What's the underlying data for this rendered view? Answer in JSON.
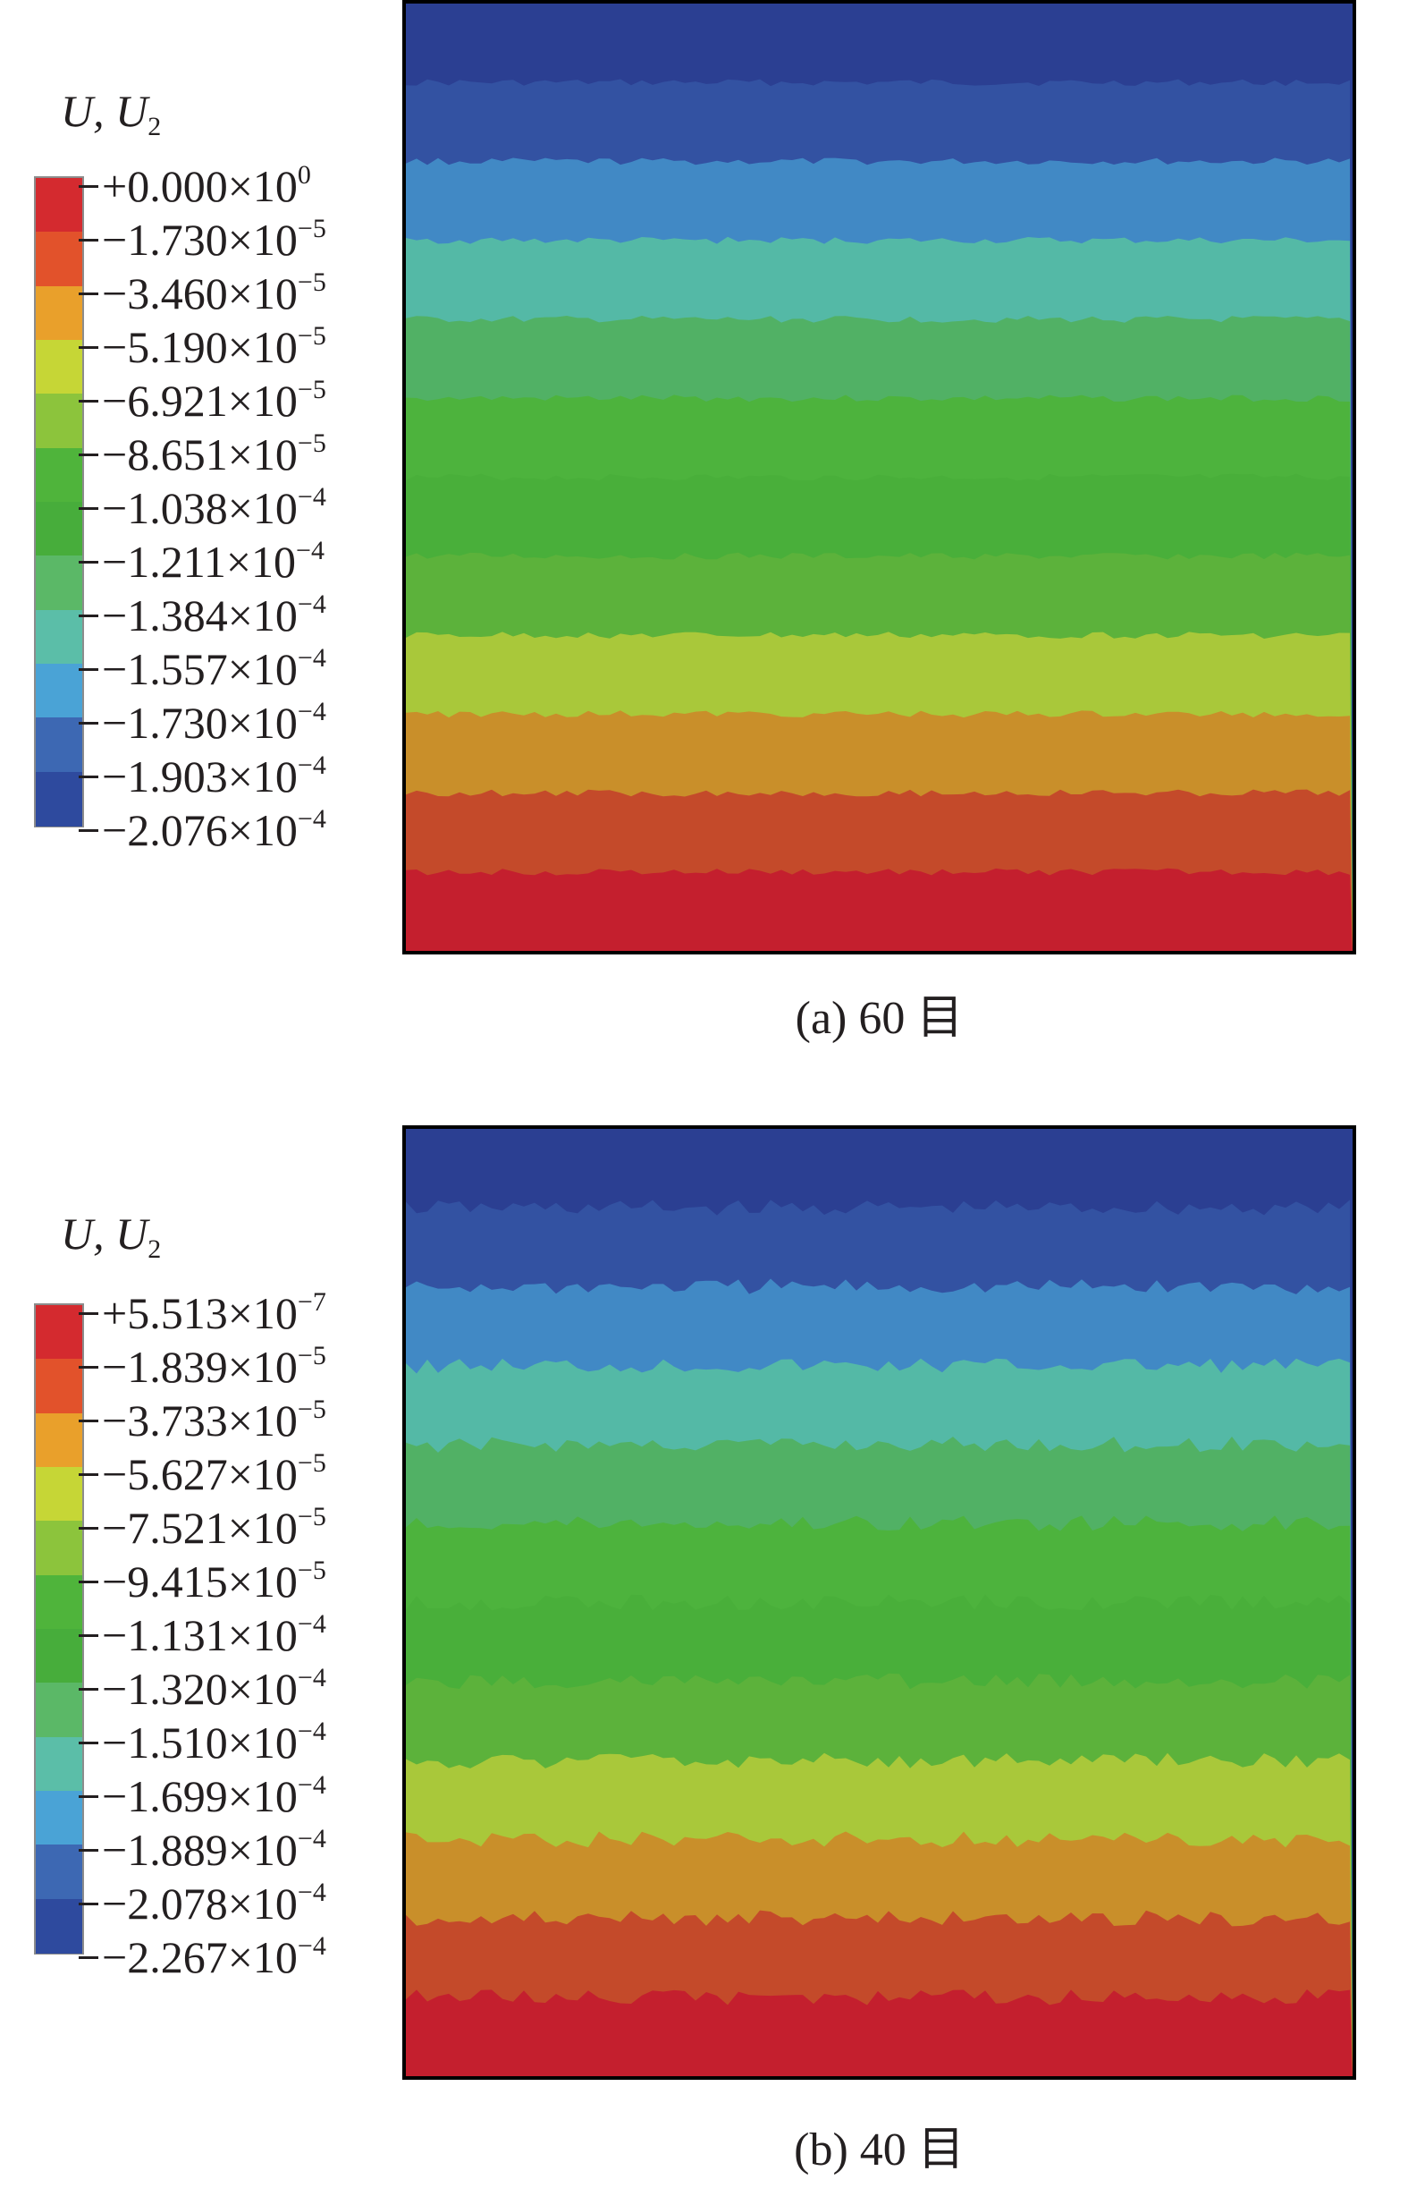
{
  "panels": [
    {
      "id": "a",
      "legend_title": {
        "main": "U, U",
        "sub": "2"
      },
      "legend_labels": [
        {
          "mantissa": "+0.000×10",
          "exp": "0"
        },
        {
          "mantissa": "−1.730×10",
          "exp": "−5"
        },
        {
          "mantissa": "−3.460×10",
          "exp": "−5"
        },
        {
          "mantissa": "−5.190×10",
          "exp": "−5"
        },
        {
          "mantissa": "−6.921×10",
          "exp": "−5"
        },
        {
          "mantissa": "−8.651×10",
          "exp": "−5"
        },
        {
          "mantissa": "−1.038×10",
          "exp": "−4"
        },
        {
          "mantissa": "−1.211×10",
          "exp": "−4"
        },
        {
          "mantissa": "−1.384×10",
          "exp": "−4"
        },
        {
          "mantissa": "−1.557×10",
          "exp": "−4"
        },
        {
          "mantissa": "−1.730×10",
          "exp": "−4"
        },
        {
          "mantissa": "−1.903×10",
          "exp": "−4"
        },
        {
          "mantissa": "−2.076×10",
          "exp": "−4"
        }
      ],
      "caption": "(a) 60 目"
    },
    {
      "id": "b",
      "legend_title": {
        "main": "U, U",
        "sub": "2"
      },
      "legend_labels": [
        {
          "mantissa": "+5.513×10",
          "exp": "−7"
        },
        {
          "mantissa": "−1.839×10",
          "exp": "−5"
        },
        {
          "mantissa": "−3.733×10",
          "exp": "−5"
        },
        {
          "mantissa": "−5.627×10",
          "exp": "−5"
        },
        {
          "mantissa": "−7.521×10",
          "exp": "−5"
        },
        {
          "mantissa": "−9.415×10",
          "exp": "−5"
        },
        {
          "mantissa": "−1.131×10",
          "exp": "−4"
        },
        {
          "mantissa": "−1.320×10",
          "exp": "−4"
        },
        {
          "mantissa": "−1.510×10",
          "exp": "−4"
        },
        {
          "mantissa": "−1.699×10",
          "exp": "−4"
        },
        {
          "mantissa": "−1.889×10",
          "exp": "−4"
        },
        {
          "mantissa": "−2.078×10",
          "exp": "−4"
        },
        {
          "mantissa": "−2.267×10",
          "exp": "−4"
        }
      ],
      "caption": "(b) 40 目"
    }
  ],
  "colormap": [
    "#d42a2f",
    "#e2522b",
    "#e9a02b",
    "#c6d636",
    "#8cc43c",
    "#4fb43b",
    "#47ad3b",
    "#5bb867",
    "#5bbea8",
    "#4aa3d6",
    "#3d68b3",
    "#2e4a9e"
  ],
  "contour_colors": [
    "#2b3f92",
    "#3352a2",
    "#4189c5",
    "#54b9a6",
    "#51b165",
    "#4db33d",
    "#49af3a",
    "#5cb23b",
    "#a9c83a",
    "#c98f2a",
    "#c44a2a",
    "#c41f2e"
  ]
}
